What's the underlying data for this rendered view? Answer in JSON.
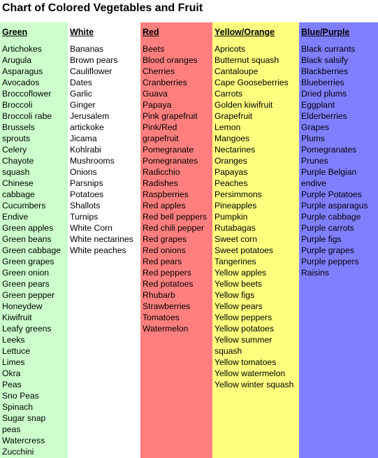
{
  "title": "Chart of Colored Vegetables and Fruit",
  "columns": [
    {
      "id": "green",
      "header": "Green",
      "color": "#ccffcc",
      "items": [
        "Artichokes",
        "Arugula",
        "Asparagus",
        "Avocados",
        "Broccoflower",
        "Broccoli",
        "Broccoli rabe",
        "Brussels",
        "sprouts",
        "Celery",
        "Chayote",
        "squash",
        "Chinese",
        "cabbage",
        "Cucumbers",
        "Endive",
        "Green apples",
        "Green beans",
        "Green cabbage",
        "Green grapes",
        "Green onion",
        "Green pears",
        "Green pepper",
        "Honeydew",
        "Kiwifruit",
        "Leafy greens",
        "Leeks",
        "Lettuce",
        "Limes",
        "Okra",
        "Peas",
        "Sno Peas",
        "Spinach",
        "Sugar snap",
        "peas",
        "Watercress",
        "Zucchini"
      ]
    },
    {
      "id": "white",
      "header": "White",
      "color": "#ffffff",
      "items": [
        "Bananas",
        "Brown pears",
        "Cauliflower",
        "Dates",
        "Garlic",
        "Ginger",
        "Jerusalem",
        "artickoke",
        "Jicama",
        "Kohlrabi",
        "Mushrooms",
        "Onions",
        "Parsnips",
        "Potatoes",
        "Shallots",
        "Turnips",
        "White Corn",
        "White nectarines",
        "White peaches"
      ]
    },
    {
      "id": "red",
      "header": "Red",
      "color": "#ff7f7f",
      "items": [
        "Beets",
        "Blood oranges",
        "Cherries",
        "Cranberries",
        "Guava",
        "Papaya",
        "Pink grapefruit",
        "Pink/Red",
        "grapefruit",
        "Pomegranate",
        "Pomegranates",
        "Radicchio",
        "Radishes",
        "Raspberries",
        "Red apples",
        "Red bell peppers",
        "Red chili pepper",
        "Red grapes",
        "Red onions",
        "Red pears",
        "Red peppers",
        "Red potatoes",
        "Rhubarb",
        "Strawberries",
        "Tomatoes",
        "Watermelon"
      ]
    },
    {
      "id": "yellow-orange",
      "header": "Yellow/Orange",
      "color": "#ffff7f",
      "items": [
        "Apricots",
        "Butternut squash",
        "Cantaloupe",
        "Cape Gooseberries",
        "Carrots",
        "Golden kiwifruit",
        "Grapefruit",
        "Lemon",
        "Mangoes",
        "Nectarines",
        "Oranges",
        "Papayas",
        "Peaches",
        "Persimmons",
        "Pineapples",
        "Pumpkin",
        "Rutabagas",
        "Sweet corn",
        "Sweet potatoes",
        "Tangerines",
        "Yellow apples",
        "Yellow beets",
        "Yellow figs",
        "Yellow pears",
        "Yellow peppers",
        "Yellow potatoes",
        "Yellow summer",
        "squash",
        "Yellow tomatoes",
        "Yellow watermelon",
        "Yellow winter squash"
      ]
    },
    {
      "id": "blue-purple",
      "header": "Blue/Purple",
      "color": "#7f7fff",
      "items": [
        "Black currants",
        "Black salsify",
        "Blackberries",
        "Blueberries",
        "Dried plums",
        "Eggplant",
        "Elderberries",
        "Grapes",
        "Plums",
        "Pomegranates",
        "Prunes",
        "Purple Belgian",
        "endive",
        "Purple Potatoes",
        "Purple asparagus",
        "Purple cabbage",
        "Purple carrots",
        "Purple figs",
        "Purple grapes",
        "Purple peppers",
        "Raisins"
      ]
    }
  ]
}
